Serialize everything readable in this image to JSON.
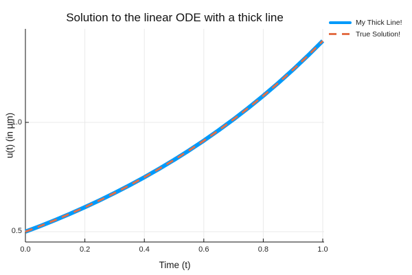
{
  "figure": {
    "title": "Solution to the linear ODE with a thick line",
    "xlabel": "Time (t)",
    "ylabel": "u(t) (in μm)"
  },
  "legend": {
    "position": "outer-top-right",
    "items": [
      {
        "label": "My Thick Line!",
        "color": "#009afa",
        "line_style": "solid-thick"
      },
      {
        "label": "True Solution!",
        "color": "#e36f47",
        "line_style": "dashed"
      }
    ]
  },
  "chart_data": {
    "type": "line",
    "title": "Solution to the linear ODE with a thick line",
    "xlabel": "Time (t)",
    "ylabel": "u(t) (in μm)",
    "xlim": [
      0.0,
      1.0046
    ],
    "ylim": [
      0.4528,
      1.4278
    ],
    "xticks": [
      0.0,
      0.2,
      0.4,
      0.6,
      0.8,
      1.0
    ],
    "xtick_labels": [
      "0.0",
      "0.2",
      "0.4",
      "0.6",
      "0.8",
      "1.0"
    ],
    "yticks": [
      0.5,
      1.0
    ],
    "ytick_labels": [
      "0.5",
      "1.0"
    ],
    "grid": true,
    "grid_color": "#e9e9e9",
    "axis_color": "#111111",
    "legend_position": "outer-top-right",
    "x": [
      0,
      0.05,
      0.1,
      0.15,
      0.2,
      0.25,
      0.3,
      0.35,
      0.4,
      0.45,
      0.5,
      0.55,
      0.6,
      0.65,
      0.7,
      0.75,
      0.8,
      0.85,
      0.9,
      0.95,
      1.0
    ],
    "series": [
      {
        "name": "My Thick Line!",
        "color": "#009afa",
        "line_width": 6,
        "dash": null,
        "values": [
          0.5,
          0.5259,
          0.5531,
          0.5818,
          0.6119,
          0.6436,
          0.677,
          0.712,
          0.7489,
          0.7877,
          0.8285,
          0.8714,
          0.9165,
          0.964,
          1.0139,
          1.0665,
          1.1217,
          1.1798,
          1.2409,
          1.3052,
          1.3728
        ]
      },
      {
        "name": "True Solution!",
        "color": "#e36f47",
        "line_width": 3,
        "dash": "11 8",
        "values": [
          0.5,
          0.5259,
          0.5531,
          0.5818,
          0.6119,
          0.6436,
          0.677,
          0.712,
          0.7489,
          0.7877,
          0.8285,
          0.8714,
          0.9165,
          0.964,
          1.0139,
          1.0665,
          1.1217,
          1.1798,
          1.2409,
          1.3052,
          1.3728
        ]
      }
    ]
  }
}
